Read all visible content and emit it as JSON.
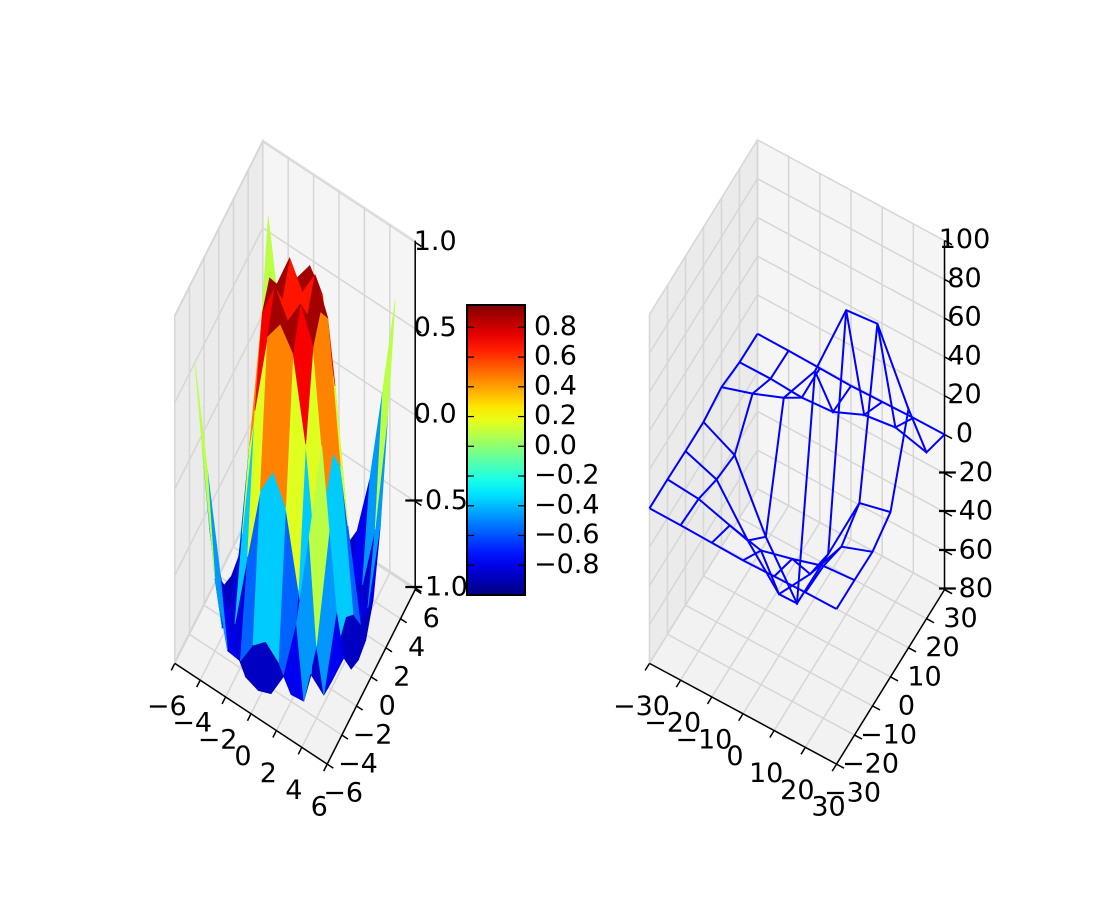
{
  "chart_data": [
    {
      "type": "surface",
      "colormap": "jet",
      "x": [
        -5,
        -4,
        -3,
        -2,
        -1,
        0,
        1,
        2,
        3,
        4,
        5
      ],
      "y": [
        -5,
        -4,
        -3,
        -2,
        -1,
        0,
        1,
        2,
        3,
        4,
        5
      ],
      "z": [
        [
          0.7,
          0.12,
          -0.43,
          -0.78,
          -0.93,
          -0.96,
          -0.93,
          -0.78,
          -0.43,
          0.12,
          0.7
        ],
        [
          0.12,
          -0.59,
          -0.96,
          -0.97,
          -0.83,
          -0.76,
          -0.83,
          -0.97,
          -0.96,
          -0.59,
          0.12
        ],
        [
          -0.43,
          -0.96,
          -0.89,
          -0.45,
          -0.02,
          0.14,
          -0.02,
          -0.45,
          -0.89,
          -0.96,
          -0.43
        ],
        [
          -0.78,
          -0.97,
          -0.45,
          0.31,
          0.79,
          0.91,
          0.79,
          0.31,
          -0.45,
          -0.97,
          -0.78
        ],
        [
          -0.93,
          -0.83,
          -0.02,
          0.79,
          0.99,
          0.84,
          0.99,
          0.79,
          -0.02,
          -0.83,
          -0.93
        ],
        [
          -0.96,
          -0.76,
          0.14,
          0.91,
          0.84,
          0,
          0.84,
          0.91,
          0.14,
          -0.76,
          -0.96
        ],
        [
          -0.93,
          -0.83,
          -0.02,
          0.79,
          0.99,
          0.84,
          0.99,
          0.79,
          -0.02,
          -0.83,
          -0.93
        ],
        [
          -0.78,
          -0.97,
          -0.45,
          0.31,
          0.79,
          0.91,
          0.79,
          0.31,
          -0.45,
          -0.97,
          -0.78
        ],
        [
          -0.43,
          -0.96,
          -0.89,
          -0.45,
          -0.02,
          0.14,
          -0.02,
          -0.45,
          -0.89,
          -0.96,
          -0.43
        ],
        [
          0.12,
          -0.59,
          -0.96,
          -0.97,
          -0.83,
          -0.76,
          -0.83,
          -0.97,
          -0.96,
          -0.59,
          0.12
        ],
        [
          0.7,
          0.12,
          -0.43,
          -0.78,
          -0.93,
          -0.96,
          -0.93,
          -0.78,
          -0.43,
          0.12,
          0.7
        ]
      ],
      "xlim": [
        -6,
        6
      ],
      "xticks": [
        {
          "value": -6,
          "label": "−6"
        },
        {
          "value": -4,
          "label": "−4"
        },
        {
          "value": -2,
          "label": "−2"
        },
        0,
        2,
        4,
        6
      ],
      "ylim": [
        -6,
        6
      ],
      "yticks": [
        {
          "value": -6,
          "label": "−6"
        },
        {
          "value": -4,
          "label": "−4"
        },
        {
          "value": -2,
          "label": "−2"
        },
        0,
        2,
        4,
        6
      ],
      "zlim": [
        -1.01,
        1.01
      ],
      "zticks": [
        {
          "value": -1,
          "label": "−1.0"
        },
        {
          "value": -0.5,
          "label": "−0.5"
        },
        {
          "value": 0,
          "label": "0.0"
        },
        0.5,
        {
          "value": 1,
          "label": "1.0"
        }
      ],
      "grid": true,
      "colorbar": {
        "lim": [
          -1,
          0.95
        ],
        "ticks": [
          {
            "value": -0.8,
            "label": "−0.8"
          },
          {
            "value": -0.6,
            "label": "−0.6"
          },
          {
            "value": -0.4,
            "label": "−0.4"
          },
          {
            "value": -0.2,
            "label": "−0.2"
          },
          {
            "value": 0,
            "label": "0.0"
          },
          0.2,
          0.4,
          0.6,
          0.8
        ]
      }
    },
    {
      "type": "wireframe",
      "color": "#0000ff",
      "x": [
        -30,
        -20,
        -10,
        0,
        10,
        20,
        30
      ],
      "y": [
        -30,
        -20,
        -10,
        0,
        10,
        20,
        30
      ],
      "z": [
        [
          0,
          -0.1,
          -0.5,
          -0.9,
          -0.5,
          -0.1,
          0
        ],
        [
          -0.1,
          -1.5,
          -6.5,
          -10.8,
          -6.5,
          -1.5,
          -0.1
        ],
        [
          -0.5,
          -6.5,
          -29.3,
          -48.3,
          -29.3,
          -6.5,
          -0.5
        ],
        [
          -0.5,
          -8.9,
          -42.4,
          -68.1,
          -34,
          1,
          5
        ],
        [
          2.5,
          7.8,
          14.3,
          36.7,
          76.8,
          78.5,
          43.1
        ],
        [
          0.3,
          0.5,
          -0.6,
          0.7,
          7.8,
          10,
          5.8
        ],
        [
          0,
          -0.1,
          -0.5,
          -0.9,
          -0.5,
          -0.1,
          0
        ]
      ],
      "xlim": [
        -30,
        30
      ],
      "xticks": [
        {
          "value": -30,
          "label": "−30"
        },
        {
          "value": -20,
          "label": "−20"
        },
        {
          "value": -10,
          "label": "−10"
        },
        0,
        10,
        20,
        30
      ],
      "ylim": [
        -30,
        30
      ],
      "yticks": [
        {
          "value": -30,
          "label": "−30"
        },
        {
          "value": -20,
          "label": "−20"
        },
        {
          "value": -10,
          "label": "−10"
        },
        0,
        10,
        20,
        30
      ],
      "zlim": [
        -80,
        100
      ],
      "zticks": [
        {
          "value": -80,
          "label": "−80"
        },
        {
          "value": -60,
          "label": "−60"
        },
        {
          "value": -40,
          "label": "−40"
        },
        {
          "value": -20,
          "label": "−20"
        },
        0,
        20,
        40,
        60,
        80,
        100
      ],
      "grid": true
    }
  ]
}
